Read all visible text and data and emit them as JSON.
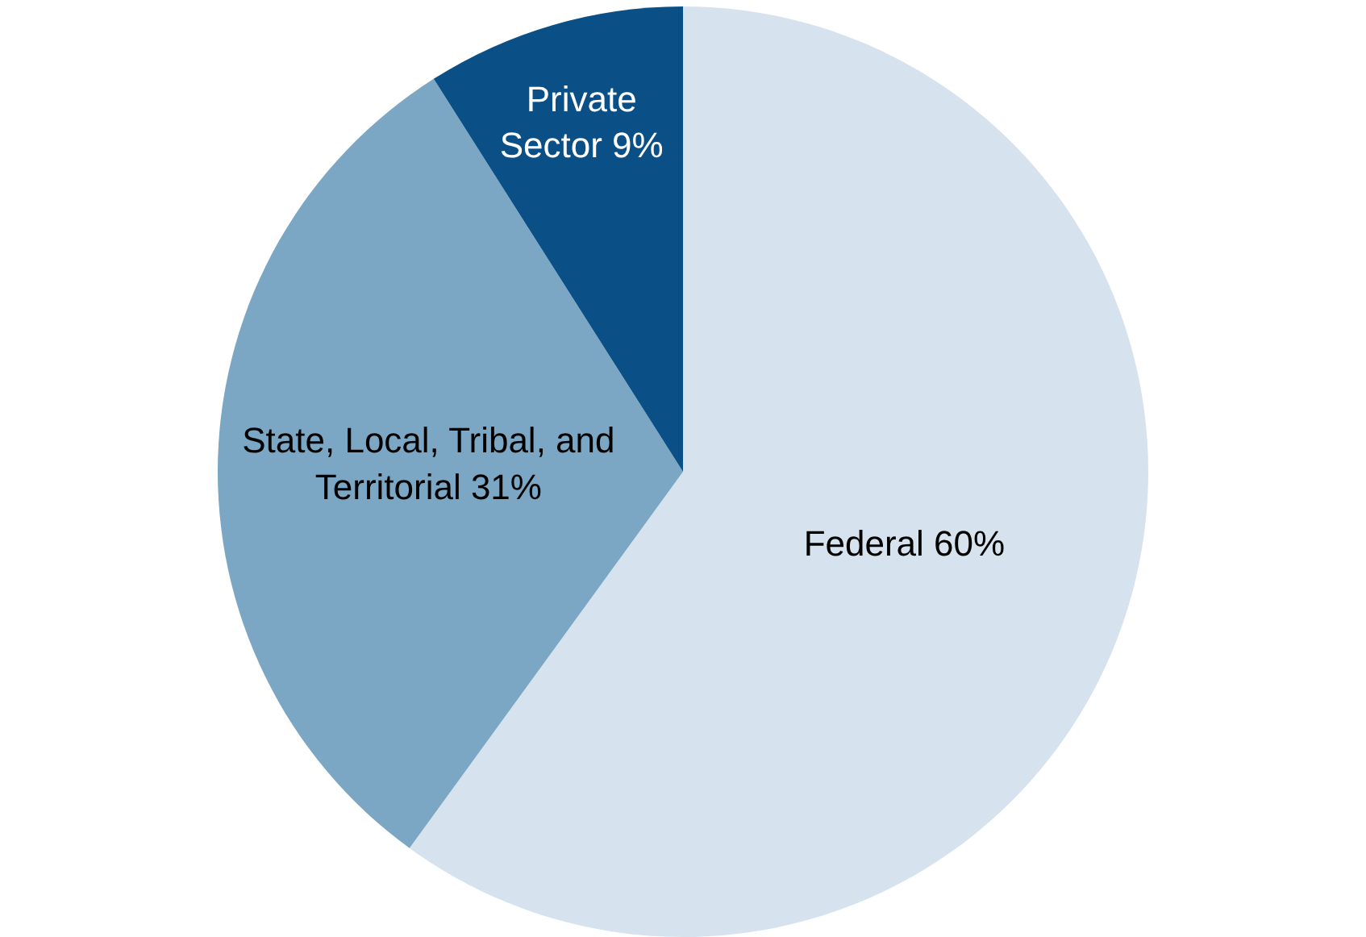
{
  "chart_data": {
    "type": "pie",
    "categories": [
      "Federal",
      "State, Local, Tribal, and Territorial",
      "Private Sector"
    ],
    "values": [
      60,
      31,
      9
    ],
    "colors": [
      "#d6e3ee",
      "#7ba7c4",
      "#0a5087"
    ],
    "value_labels": [
      "60%",
      "31%",
      "9%"
    ],
    "legend": false
  }
}
